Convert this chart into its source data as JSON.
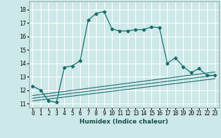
{
  "xlabel": "Humidex (Indice chaleur)",
  "bg_color": "#cce8e8",
  "grid_color": "#ffffff",
  "line_color": "#1a6b6b",
  "xlim": [
    -0.5,
    23.5
  ],
  "ylim": [
    10.7,
    18.6
  ],
  "yticks": [
    11,
    12,
    13,
    14,
    15,
    16,
    17,
    18
  ],
  "xticks": [
    0,
    1,
    2,
    3,
    4,
    5,
    6,
    7,
    8,
    9,
    10,
    11,
    12,
    13,
    14,
    15,
    16,
    17,
    18,
    19,
    20,
    21,
    22,
    23
  ],
  "main_line_x": [
    0,
    1,
    2,
    3,
    4,
    5,
    6,
    7,
    8,
    9,
    10,
    11,
    12,
    13,
    14,
    15,
    16,
    17,
    18,
    19,
    20,
    21,
    22,
    23
  ],
  "main_line_y": [
    12.3,
    12.0,
    11.2,
    11.1,
    13.7,
    13.8,
    14.2,
    17.2,
    17.7,
    17.85,
    16.55,
    16.4,
    16.4,
    16.5,
    16.5,
    16.7,
    16.65,
    14.0,
    14.4,
    13.75,
    13.3,
    13.6,
    13.1,
    13.1
  ],
  "line2_x": [
    0,
    23
  ],
  "line2_y": [
    11.2,
    12.85
  ],
  "line3_x": [
    0,
    23
  ],
  "line3_y": [
    11.4,
    13.1
  ],
  "line4_x": [
    0,
    23
  ],
  "line4_y": [
    11.6,
    13.35
  ],
  "xlabel_fontsize": 6.5,
  "tick_fontsize": 5.5
}
